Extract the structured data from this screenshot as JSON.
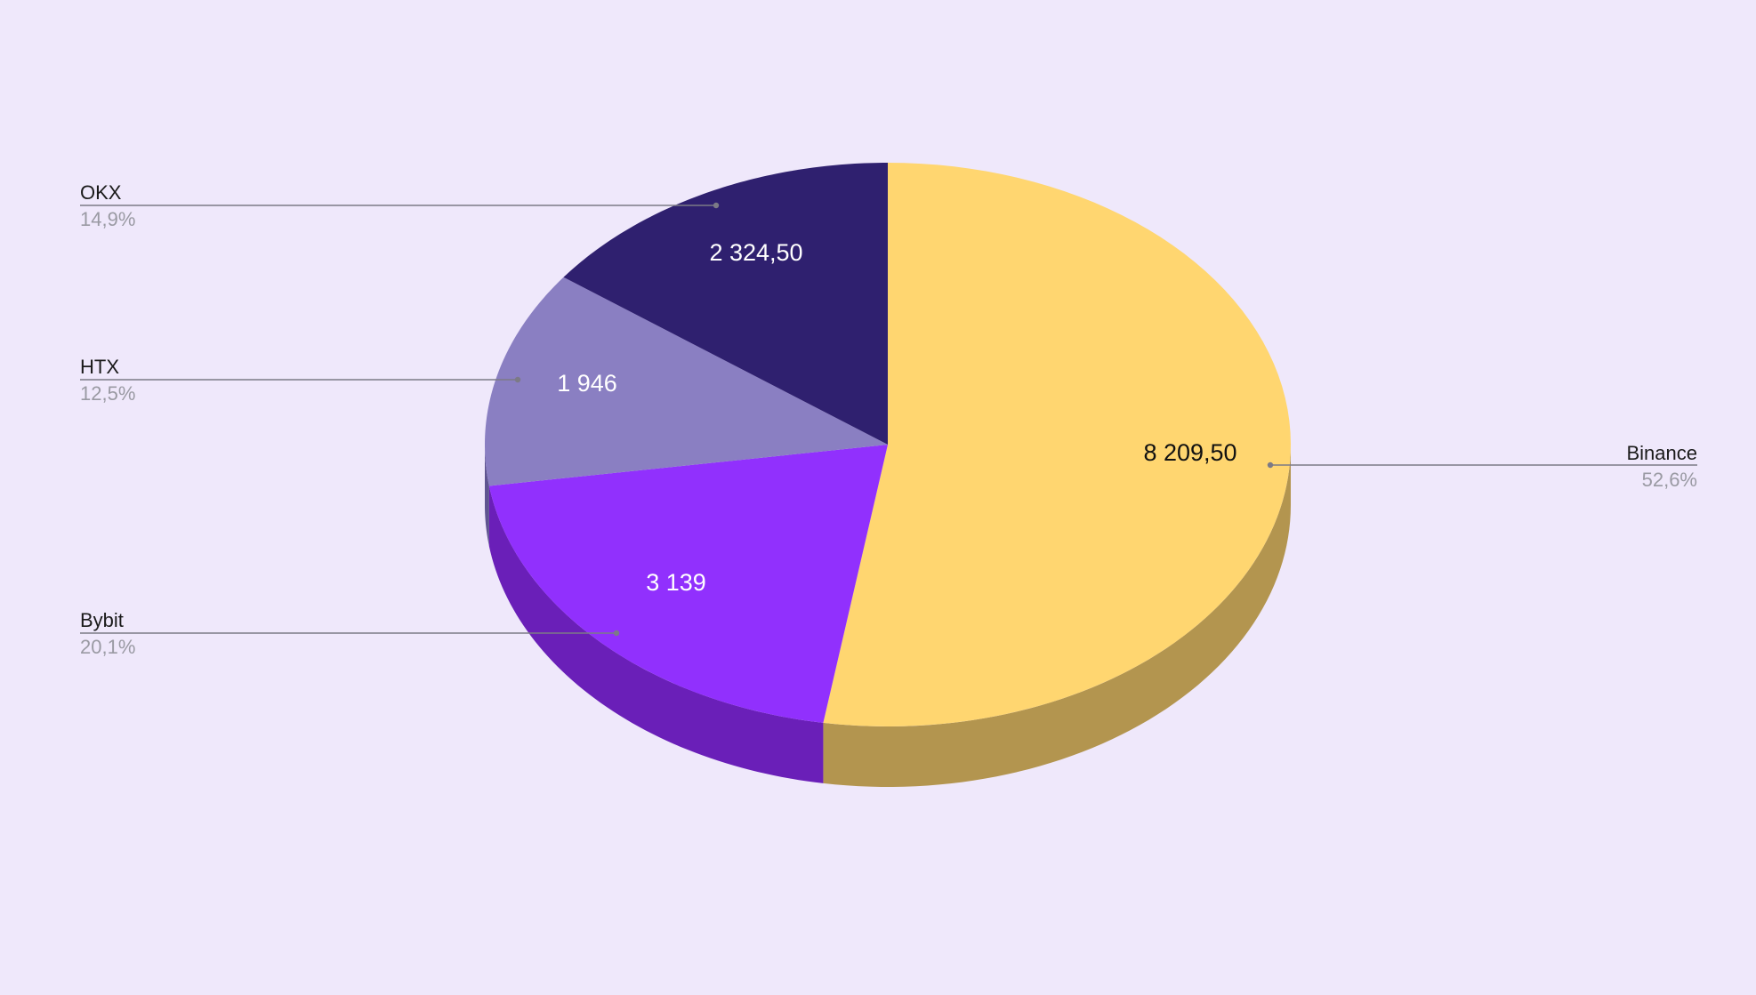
{
  "chart_data": {
    "type": "pie",
    "title": "",
    "style": "3d-tilted",
    "start_angle_deg": 90,
    "direction": "clockwise",
    "legend_placement": "outside-labels",
    "slices": [
      {
        "label": "Binance",
        "value": 8209.5,
        "value_label": "8 209,50",
        "percent_label": "52,6%",
        "color": "#ffd670",
        "side_color": "#b3954f",
        "text_color": "#111111"
      },
      {
        "label": "Bybit",
        "value": 3139,
        "value_label": "3 139",
        "percent_label": "20,1%",
        "color": "#9130fd",
        "side_color": "#6a1fb8",
        "text_color": "#ffffff"
      },
      {
        "label": "HTX",
        "value": 1946,
        "value_label": "1 946",
        "percent_label": "12,5%",
        "color": "#8a7fc2",
        "side_color": "#5f5590",
        "text_color": "#ffffff"
      },
      {
        "label": "OKX",
        "value": 2324.5,
        "value_label": "2 324,50",
        "percent_label": "14,9%",
        "color": "#2f206f",
        "side_color": "#20154f",
        "text_color": "#ffffff"
      }
    ]
  },
  "background_color": "#efe8fb"
}
